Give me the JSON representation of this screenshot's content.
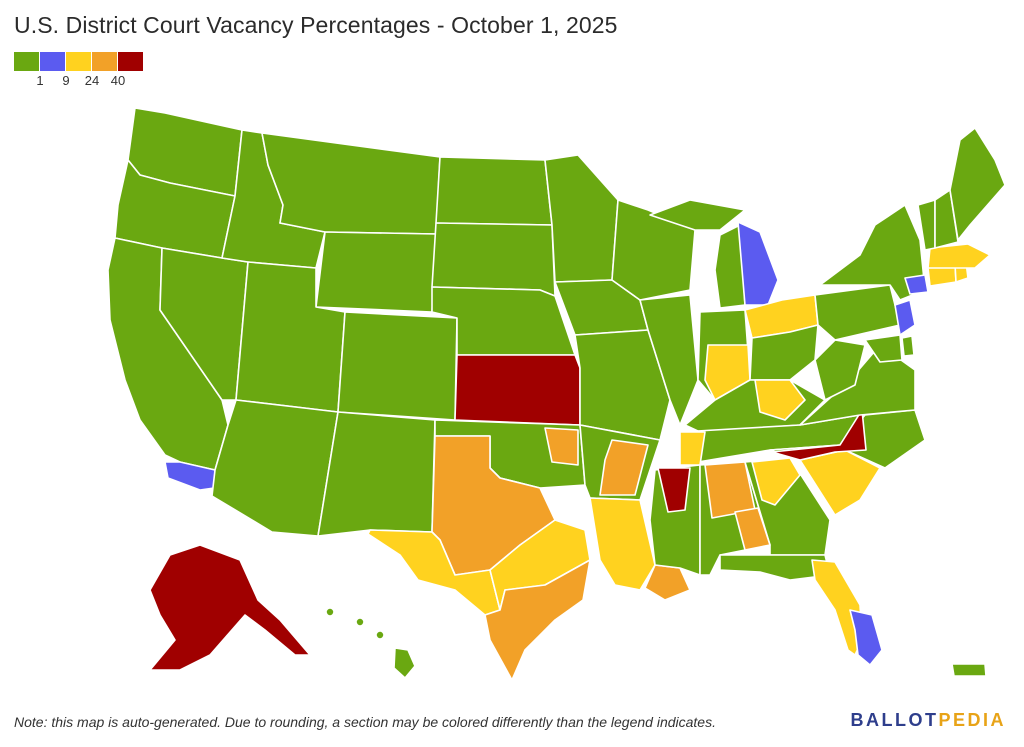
{
  "title": "U.S. District Court Vacancy Percentages - October 1, 2025",
  "legend": {
    "colors": [
      "#6aa811",
      "#5b5bf0",
      "#ffd21f",
      "#f2a128",
      "#a00000"
    ],
    "ticks": [
      "1",
      "9",
      "24",
      "40"
    ]
  },
  "note": "Note: this map is auto-generated. Due to rounding, a section may be colored differently than the legend indicates.",
  "logo": {
    "part1": "BALLOT",
    "part2": "PEDIA"
  },
  "map": {
    "regions": [
      {
        "state": "Washington",
        "color": "green"
      },
      {
        "state": "Oregon",
        "color": "green"
      },
      {
        "state": "California",
        "color": "green"
      },
      {
        "state": "Central District of California",
        "color": "blue"
      },
      {
        "state": "Nevada",
        "color": "green"
      },
      {
        "state": "Idaho",
        "color": "green"
      },
      {
        "state": "Montana",
        "color": "green"
      },
      {
        "state": "Wyoming",
        "color": "green"
      },
      {
        "state": "Utah",
        "color": "green"
      },
      {
        "state": "Colorado",
        "color": "green"
      },
      {
        "state": "Arizona",
        "color": "green"
      },
      {
        "state": "New Mexico",
        "color": "green"
      },
      {
        "state": "North Dakota",
        "color": "green"
      },
      {
        "state": "South Dakota",
        "color": "green"
      },
      {
        "state": "Nebraska",
        "color": "green"
      },
      {
        "state": "Kansas",
        "color": "darkred"
      },
      {
        "state": "Oklahoma",
        "color": "green"
      },
      {
        "state": "Eastern District of Oklahoma",
        "color": "orange"
      },
      {
        "state": "Northern District of Texas",
        "color": "orange"
      },
      {
        "state": "Western District of Texas",
        "color": "yellow"
      },
      {
        "state": "Eastern District of Texas",
        "color": "yellow"
      },
      {
        "state": "Southern District of Texas",
        "color": "orange"
      },
      {
        "state": "Minnesota",
        "color": "green"
      },
      {
        "state": "Iowa",
        "color": "green"
      },
      {
        "state": "Missouri",
        "color": "green"
      },
      {
        "state": "Arkansas",
        "color": "green"
      },
      {
        "state": "Eastern District of Arkansas",
        "color": "orange"
      },
      {
        "state": "Louisiana",
        "color": "yellow"
      },
      {
        "state": "Eastern District of Louisiana",
        "color": "orange"
      },
      {
        "state": "Wisconsin",
        "color": "green"
      },
      {
        "state": "Illinois",
        "color": "green"
      },
      {
        "state": "Michigan Upper Peninsula",
        "color": "green"
      },
      {
        "state": "Western District of Michigan",
        "color": "green"
      },
      {
        "state": "Eastern District of Michigan",
        "color": "blue"
      },
      {
        "state": "Indiana",
        "color": "green"
      },
      {
        "state": "Southern District of Indiana",
        "color": "yellow"
      },
      {
        "state": "Northern District of Ohio",
        "color": "yellow"
      },
      {
        "state": "Southern District of Ohio",
        "color": "green"
      },
      {
        "state": "Kentucky",
        "color": "green"
      },
      {
        "state": "Eastern District of Kentucky",
        "color": "yellow"
      },
      {
        "state": "Tennessee",
        "color": "green"
      },
      {
        "state": "Western District of Tennessee",
        "color": "yellow"
      },
      {
        "state": "Mississippi",
        "color": "green"
      },
      {
        "state": "Southern District of Mississippi",
        "color": "darkred"
      },
      {
        "state": "Alabama",
        "color": "green"
      },
      {
        "state": "Northern District of Alabama",
        "color": "orange"
      },
      {
        "state": "Georgia",
        "color": "green"
      },
      {
        "state": "Middle District of Georgia",
        "color": "orange"
      },
      {
        "state": "Northern District of Georgia",
        "color": "yellow"
      },
      {
        "state": "Florida",
        "color": "green"
      },
      {
        "state": "Middle District of Florida",
        "color": "yellow"
      },
      {
        "state": "Southern District of Florida",
        "color": "blue"
      },
      {
        "state": "South Carolina",
        "color": "yellow"
      },
      {
        "state": "North Carolina",
        "color": "green"
      },
      {
        "state": "Western District of North Carolina",
        "color": "darkred"
      },
      {
        "state": "Virginia",
        "color": "green"
      },
      {
        "state": "West Virginia",
        "color": "green"
      },
      {
        "state": "Pennsylvania",
        "color": "green"
      },
      {
        "state": "New York",
        "color": "green"
      },
      {
        "state": "Southern District of New York",
        "color": "blue"
      },
      {
        "state": "New Jersey",
        "color": "blue"
      },
      {
        "state": "Delaware",
        "color": "green"
      },
      {
        "state": "Maryland",
        "color": "green"
      },
      {
        "state": "Connecticut",
        "color": "yellow"
      },
      {
        "state": "Rhode Island",
        "color": "yellow"
      },
      {
        "state": "Massachusetts",
        "color": "yellow"
      },
      {
        "state": "Vermont",
        "color": "green"
      },
      {
        "state": "New Hampshire",
        "color": "green"
      },
      {
        "state": "Maine",
        "color": "green"
      },
      {
        "state": "Alaska",
        "color": "darkred"
      },
      {
        "state": "Hawaii",
        "color": "green"
      },
      {
        "state": "Puerto Rico",
        "color": "green"
      }
    ]
  }
}
